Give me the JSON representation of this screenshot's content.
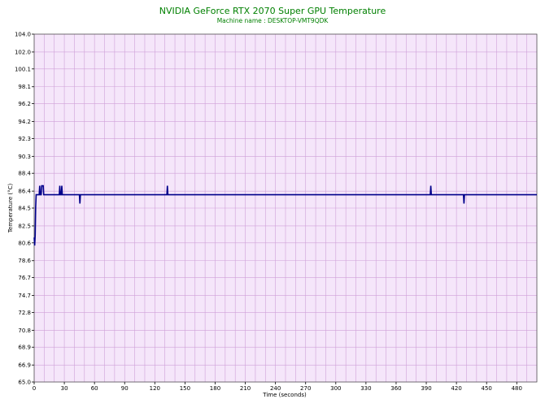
{
  "chart_data": {
    "type": "line",
    "title": "NVIDIA GeForce RTX 2070 Super GPU Temperature",
    "subtitle": "Machine name : DESKTOP-VMT9QDK",
    "xlabel": "Time (seconds)",
    "ylabel": "Temperature (°C)",
    "xlim": [
      0,
      500
    ],
    "ylim": [
      65.0,
      104.0
    ],
    "x_ticks": [
      0,
      30,
      60,
      90,
      120,
      150,
      180,
      210,
      240,
      270,
      300,
      330,
      360,
      390,
      420,
      450,
      480
    ],
    "y_ticks": [
      "65.0",
      "66.9",
      "68.9",
      "70.8",
      "72.8",
      "74.7",
      "76.7",
      "78.6",
      "80.6",
      "82.5",
      "84.5",
      "86.4",
      "88.4",
      "90.3",
      "92.3",
      "94.2",
      "96.2",
      "98.1",
      "100.1",
      "102.0",
      "104.0"
    ],
    "grid": true,
    "colors": {
      "title": "#008000",
      "subtitle": "#008000",
      "plot_background": "#f5e6fa",
      "grid": "#cfa0d8",
      "line": "#00008b"
    },
    "series": [
      {
        "values_x": [
          0,
          0.5,
          1,
          1.5,
          2,
          2.5,
          3,
          5,
          5.5,
          6,
          7,
          7.5,
          8,
          8.5,
          9,
          9.5,
          10,
          11,
          25,
          25.5,
          26,
          27,
          27.5,
          28,
          28.5,
          29,
          45,
          45.5,
          46,
          47,
          132,
          132.5,
          133,
          134,
          394,
          394.5,
          395,
          396,
          427,
          427.5,
          428,
          429,
          500
        ],
        "values_y": [
          81.2,
          80.3,
          81.4,
          84.6,
          86.0,
          86.0,
          86.0,
          86.0,
          87.0,
          86.0,
          86.0,
          87.0,
          87.0,
          87.0,
          87.0,
          86.0,
          86.0,
          86.0,
          86.0,
          87.0,
          86.0,
          86.0,
          87.0,
          86.0,
          86.0,
          86.0,
          86.0,
          85.0,
          86.0,
          86.0,
          86.0,
          87.0,
          86.0,
          86.0,
          86.0,
          87.0,
          86.0,
          86.0,
          86.0,
          85.0,
          86.0,
          86.0,
          86.0
        ]
      }
    ]
  }
}
